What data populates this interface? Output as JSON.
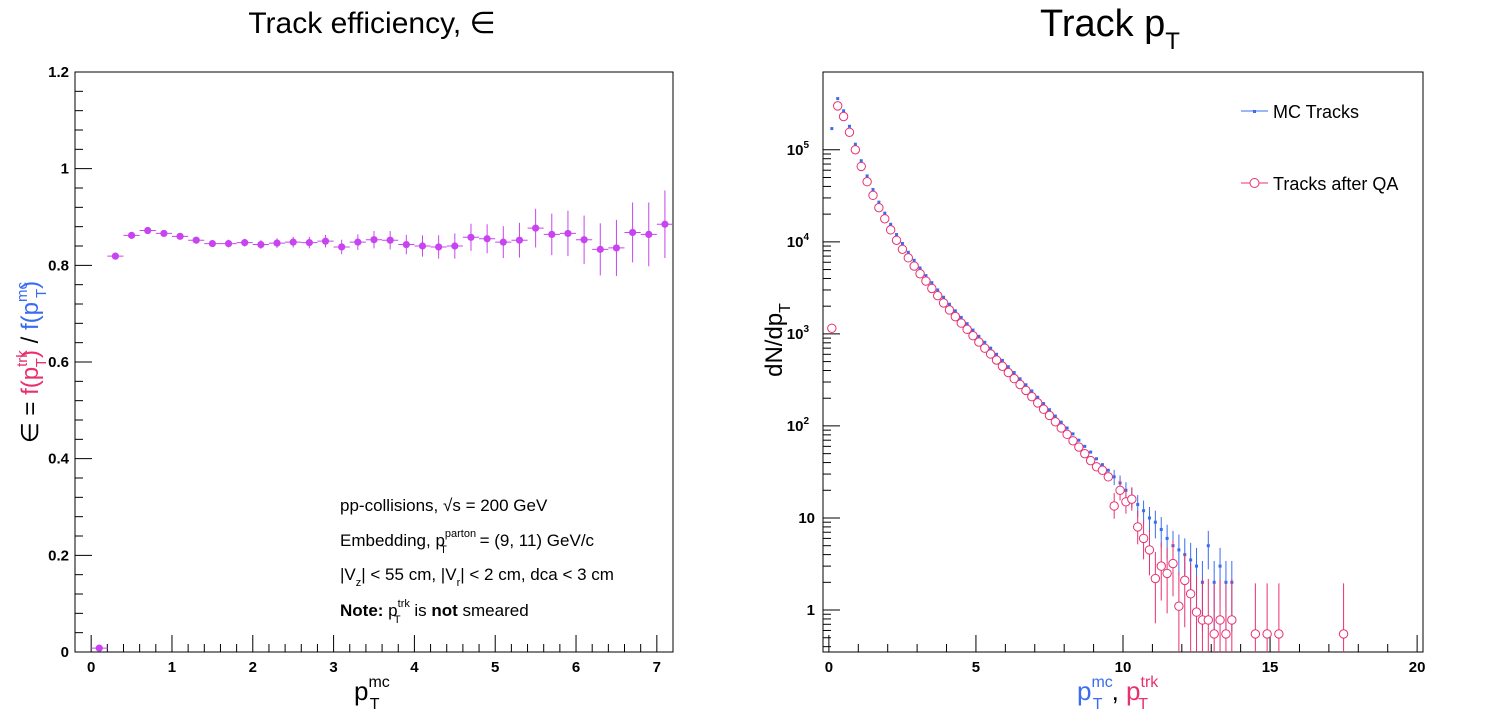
{
  "colors": {
    "eff": "#c844f0",
    "mc": "#3a6cf0",
    "qa": "#e83070",
    "axis": "#000000"
  },
  "chart_data": [
    {
      "type": "scatter",
      "title": "Track efficiency, ∈",
      "ylabel_parts": {
        "lead": "∈ = ",
        "num": "f(p",
        "num_sup": "trk",
        "num_sub": "T",
        "num_close": ")",
        "sep": " / ",
        "den": "f(p",
        "den_sup": "mc",
        "den_sub": "T",
        "den_close": ")"
      },
      "xlabel": {
        "main": "p",
        "sup": "mc",
        "sub": "T"
      },
      "xlim": [
        -0.2,
        7.2
      ],
      "ylim": [
        0,
        1.2
      ],
      "xticks": [
        "0",
        "1",
        "2",
        "3",
        "4",
        "5",
        "6",
        "7"
      ],
      "yticks": [
        "0",
        "0.2",
        "0.4",
        "0.6",
        "0.8",
        "1",
        "1.2"
      ],
      "points": [
        {
          "x": 0.1,
          "y": 0.008,
          "e": 0.004
        },
        {
          "x": 0.3,
          "y": 0.819,
          "e": 0.006
        },
        {
          "x": 0.5,
          "y": 0.862,
          "e": 0.005
        },
        {
          "x": 0.7,
          "y": 0.872,
          "e": 0.005
        },
        {
          "x": 0.9,
          "y": 0.866,
          "e": 0.006
        },
        {
          "x": 1.1,
          "y": 0.86,
          "e": 0.006
        },
        {
          "x": 1.3,
          "y": 0.852,
          "e": 0.007
        },
        {
          "x": 1.5,
          "y": 0.845,
          "e": 0.007
        },
        {
          "x": 1.7,
          "y": 0.845,
          "e": 0.008
        },
        {
          "x": 1.9,
          "y": 0.847,
          "e": 0.008
        },
        {
          "x": 2.1,
          "y": 0.843,
          "e": 0.009
        },
        {
          "x": 2.3,
          "y": 0.846,
          "e": 0.01
        },
        {
          "x": 2.5,
          "y": 0.848,
          "e": 0.011
        },
        {
          "x": 2.7,
          "y": 0.847,
          "e": 0.012
        },
        {
          "x": 2.9,
          "y": 0.85,
          "e": 0.013
        },
        {
          "x": 3.1,
          "y": 0.838,
          "e": 0.015
        },
        {
          "x": 3.3,
          "y": 0.848,
          "e": 0.016
        },
        {
          "x": 3.5,
          "y": 0.853,
          "e": 0.018
        },
        {
          "x": 3.7,
          "y": 0.852,
          "e": 0.019
        },
        {
          "x": 3.9,
          "y": 0.843,
          "e": 0.02
        },
        {
          "x": 4.1,
          "y": 0.84,
          "e": 0.022
        },
        {
          "x": 4.3,
          "y": 0.838,
          "e": 0.024
        },
        {
          "x": 4.5,
          "y": 0.84,
          "e": 0.026
        },
        {
          "x": 4.7,
          "y": 0.858,
          "e": 0.028
        },
        {
          "x": 4.9,
          "y": 0.855,
          "e": 0.03
        },
        {
          "x": 5.1,
          "y": 0.848,
          "e": 0.033
        },
        {
          "x": 5.3,
          "y": 0.852,
          "e": 0.036
        },
        {
          "x": 5.5,
          "y": 0.877,
          "e": 0.04
        },
        {
          "x": 5.7,
          "y": 0.864,
          "e": 0.043
        },
        {
          "x": 5.9,
          "y": 0.866,
          "e": 0.047
        },
        {
          "x": 6.1,
          "y": 0.853,
          "e": 0.05
        },
        {
          "x": 6.3,
          "y": 0.833,
          "e": 0.054
        },
        {
          "x": 6.5,
          "y": 0.836,
          "e": 0.058
        },
        {
          "x": 6.7,
          "y": 0.868,
          "e": 0.062
        },
        {
          "x": 6.9,
          "y": 0.864,
          "e": 0.066
        },
        {
          "x": 7.1,
          "y": 0.885,
          "e": 0.07
        }
      ],
      "annotations": [
        {
          "pre": "pp-collisions, ",
          "root": "√s",
          "post": " = 200 GeV"
        },
        {
          "pre": "Embedding, p",
          "sub": "T",
          "sup": "parton",
          "post": " = (9, 11) GeV/c"
        },
        {
          "pre": "|V",
          "sub": "z",
          "mid": "| < 55 cm, |V",
          "sub2": "r",
          "post": "| < 2 cm, dca < 3 cm"
        },
        {
          "bold1": "Note:",
          "pre": " p",
          "sub": "T",
          "sup": "trk",
          "mid": " is ",
          "bold2": "not",
          "post": " smeared"
        }
      ]
    },
    {
      "type": "scatter",
      "title": {
        "main": "Track p",
        "sub": "T"
      },
      "ylabel": {
        "main": "dN/dp",
        "sub": "T"
      },
      "xlabel": {
        "a": "p",
        "a_sup": "mc",
        "a_sub": "T",
        "sep": ", ",
        "b": "p",
        "b_sup": "trk",
        "b_sub": "T"
      },
      "xlim": [
        -0.2,
        20.2
      ],
      "ylim": [
        0.35,
        700000
      ],
      "yscale": "log",
      "xticks": [
        "0",
        "5",
        "10",
        "15",
        "20"
      ],
      "yticks": [
        {
          "v": 1,
          "label": "1"
        },
        {
          "v": 10,
          "label": "10"
        },
        {
          "v": 100,
          "label": "10",
          "exp": "2"
        },
        {
          "v": 1000,
          "label": "10",
          "exp": "3"
        },
        {
          "v": 10000,
          "label": "10",
          "exp": "4"
        },
        {
          "v": 100000,
          "label": "10",
          "exp": "5"
        }
      ],
      "legend": {
        "position": "top-right",
        "entries": [
          "MC Tracks",
          "Tracks after QA"
        ]
      },
      "series": [
        {
          "name": "MC Tracks",
          "points": [
            [
              0.1,
              170000
            ],
            [
              0.3,
              360000
            ],
            [
              0.5,
              265000
            ],
            [
              0.7,
              180000
            ],
            [
              0.9,
              115000
            ],
            [
              1.1,
              76000
            ],
            [
              1.3,
              52000
            ],
            [
              1.5,
              37000
            ],
            [
              1.7,
              27000
            ],
            [
              1.9,
              20500
            ],
            [
              2.1,
              15500
            ],
            [
              2.3,
              12000
            ],
            [
              2.5,
              9600
            ],
            [
              2.7,
              7700
            ],
            [
              2.9,
              6300
            ],
            [
              3.1,
              5200
            ],
            [
              3.3,
              4300
            ],
            [
              3.5,
              3600
            ],
            [
              3.7,
              3000
            ],
            [
              3.9,
              2500
            ],
            [
              4.1,
              2100
            ],
            [
              4.3,
              1780
            ],
            [
              4.5,
              1510
            ],
            [
              4.7,
              1290
            ],
            [
              4.9,
              1100
            ],
            [
              5.1,
              940
            ],
            [
              5.3,
              810
            ],
            [
              5.5,
              700
            ],
            [
              5.7,
              600
            ],
            [
              5.9,
              515
            ],
            [
              6.1,
              440
            ],
            [
              6.3,
              380
            ],
            [
              6.5,
              325
            ],
            [
              6.7,
              280
            ],
            [
              6.9,
              240
            ],
            [
              7.1,
              205
            ],
            [
              7.3,
              175
            ],
            [
              7.5,
              150
            ],
            [
              7.7,
              128
            ],
            [
              7.9,
              110
            ],
            [
              8.1,
              95
            ],
            [
              8.3,
              82
            ],
            [
              8.5,
              70
            ],
            [
              8.7,
              60
            ],
            [
              8.9,
              52
            ],
            [
              9.1,
              44
            ],
            [
              9.3,
              38
            ],
            [
              9.5,
              33
            ],
            [
              9.7,
              28
            ],
            [
              9.9,
              24
            ],
            [
              10.1,
              20
            ],
            [
              10.3,
              17
            ],
            [
              10.5,
              14
            ],
            [
              10.7,
              12
            ],
            [
              10.9,
              10
            ],
            [
              11.1,
              9
            ],
            [
              11.3,
              7.5
            ],
            [
              11.5,
              6
            ],
            [
              11.7,
              5
            ],
            [
              11.9,
              4.5
            ],
            [
              12.1,
              4
            ],
            [
              12.3,
              3.5
            ],
            [
              12.5,
              3
            ],
            [
              12.7,
              2
            ],
            [
              12.9,
              5
            ],
            [
              13.1,
              2
            ],
            [
              13.3,
              3
            ],
            [
              13.5,
              2
            ],
            [
              13.7,
              2
            ]
          ]
        },
        {
          "name": "Tracks after QA",
          "points": [
            [
              0.1,
              1150,
              0
            ],
            [
              0.3,
              300000,
              0
            ],
            [
              0.5,
              230000,
              0
            ],
            [
              0.7,
              155000,
              0
            ],
            [
              0.9,
              100000,
              0
            ],
            [
              1.1,
              66000,
              0
            ],
            [
              1.3,
              45000,
              0
            ],
            [
              1.5,
              32000,
              0
            ],
            [
              1.7,
              23500,
              0
            ],
            [
              1.9,
              17800,
              0
            ],
            [
              2.1,
              13500,
              0
            ],
            [
              2.3,
              10400,
              0
            ],
            [
              2.5,
              8300,
              0
            ],
            [
              2.7,
              6700,
              0
            ],
            [
              2.9,
              5450,
              0
            ],
            [
              3.1,
              4500,
              0
            ],
            [
              3.3,
              3750,
              0
            ],
            [
              3.5,
              3120,
              0
            ],
            [
              3.7,
              2600,
              0
            ],
            [
              3.9,
              2170,
              0
            ],
            [
              4.1,
              1820,
              0
            ],
            [
              4.3,
              1540,
              0
            ],
            [
              4.5,
              1310,
              0
            ],
            [
              4.7,
              1120,
              0
            ],
            [
              4.9,
              955,
              0
            ],
            [
              5.1,
              815,
              0
            ],
            [
              5.3,
              700,
              0
            ],
            [
              5.5,
              605,
              0
            ],
            [
              5.7,
              520,
              0
            ],
            [
              5.9,
              445,
              0
            ],
            [
              6.1,
              380,
              0
            ],
            [
              6.3,
              327,
              0
            ],
            [
              6.5,
              282,
              0
            ],
            [
              6.7,
              243,
              0
            ],
            [
              6.9,
              208,
              0
            ],
            [
              7.1,
              178,
              0
            ],
            [
              7.3,
              152,
              0
            ],
            [
              7.5,
              130,
              0
            ],
            [
              7.7,
              111,
              0
            ],
            [
              7.9,
              95,
              0
            ],
            [
              8.1,
              81,
              0
            ],
            [
              8.3,
              69,
              0
            ],
            [
              8.5,
              59,
              0
            ],
            [
              8.7,
              50,
              0
            ],
            [
              8.9,
              42,
              0
            ],
            [
              9.1,
              36,
              0
            ],
            [
              9.3,
              33,
              0
            ],
            [
              9.5,
              28,
              0
            ],
            [
              9.7,
              13.5,
              1
            ],
            [
              9.9,
              20,
              1
            ],
            [
              10.1,
              15,
              1
            ],
            [
              10.3,
              16,
              1
            ],
            [
              10.5,
              8,
              1
            ],
            [
              10.7,
              6,
              1
            ],
            [
              10.9,
              4.5,
              1
            ],
            [
              11.1,
              2.2,
              1
            ],
            [
              11.3,
              3,
              1
            ],
            [
              11.5,
              2.5,
              1
            ],
            [
              11.7,
              3.2,
              1
            ],
            [
              11.9,
              1.1,
              1
            ],
            [
              12.1,
              2.1,
              1
            ],
            [
              12.3,
              1.5,
              1
            ],
            [
              12.5,
              0.95,
              1
            ],
            [
              12.7,
              0.78,
              1
            ],
            [
              12.9,
              0.78,
              1
            ],
            [
              13.1,
              0.55,
              1
            ],
            [
              13.3,
              0.78,
              1
            ],
            [
              13.5,
              0.55,
              1
            ],
            [
              13.7,
              0.78,
              1
            ],
            [
              14.5,
              0.55,
              1
            ],
            [
              14.9,
              0.55,
              1
            ],
            [
              15.3,
              0.55,
              1
            ],
            [
              17.5,
              0.55,
              1
            ]
          ]
        }
      ]
    }
  ]
}
